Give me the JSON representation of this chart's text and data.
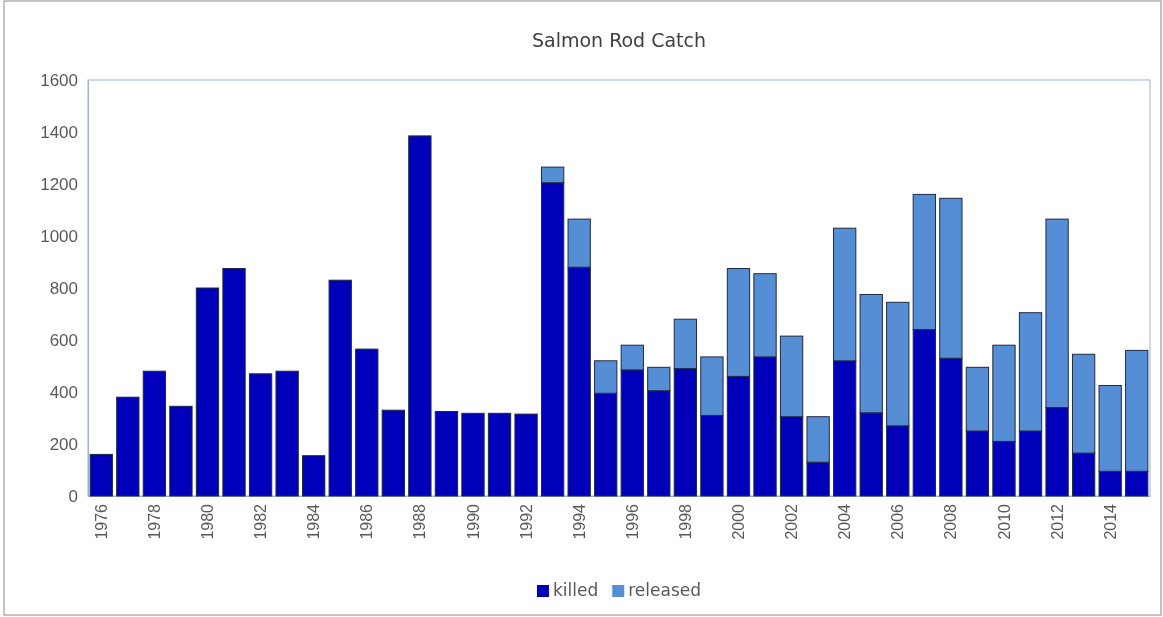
{
  "chart_data": {
    "type": "bar",
    "title": "Salmon Rod Catch",
    "stacked": true,
    "legend": "bottom",
    "grid": false,
    "categories": [
      "1976",
      null,
      "1978",
      null,
      "1980",
      null,
      "1982",
      null,
      "1984",
      null,
      "1986",
      null,
      "1988",
      null,
      "1990",
      null,
      "1992",
      null,
      "1994",
      null,
      "1996",
      null,
      "1998",
      null,
      "2000",
      null,
      "2002",
      null,
      "2004",
      null,
      "2006",
      null,
      "2008",
      null,
      "2010",
      null,
      "2012",
      null,
      "2014",
      null
    ],
    "ylim": [
      0,
      1600
    ],
    "yticks": [
      0,
      200,
      400,
      600,
      800,
      1000,
      1200,
      1400,
      1600
    ],
    "series": [
      {
        "name": "killed",
        "color": "#0000bb",
        "values": [
          160,
          380,
          480,
          345,
          800,
          875,
          470,
          480,
          155,
          830,
          565,
          330,
          1385,
          325,
          318,
          318,
          315,
          1205,
          880,
          395,
          485,
          405,
          490,
          310,
          460,
          535,
          305,
          130,
          520,
          320,
          270,
          640,
          530,
          250,
          210,
          250,
          340,
          165,
          95,
          95
        ]
      },
      {
        "name": "released",
        "color": "#558ed5",
        "values": [
          0,
          0,
          0,
          0,
          0,
          0,
          0,
          0,
          0,
          0,
          0,
          0,
          0,
          0,
          0,
          0,
          0,
          60,
          185,
          125,
          95,
          90,
          190,
          225,
          415,
          320,
          310,
          175,
          510,
          455,
          475,
          520,
          615,
          245,
          370,
          455,
          725,
          380,
          330,
          465
        ]
      }
    ]
  }
}
